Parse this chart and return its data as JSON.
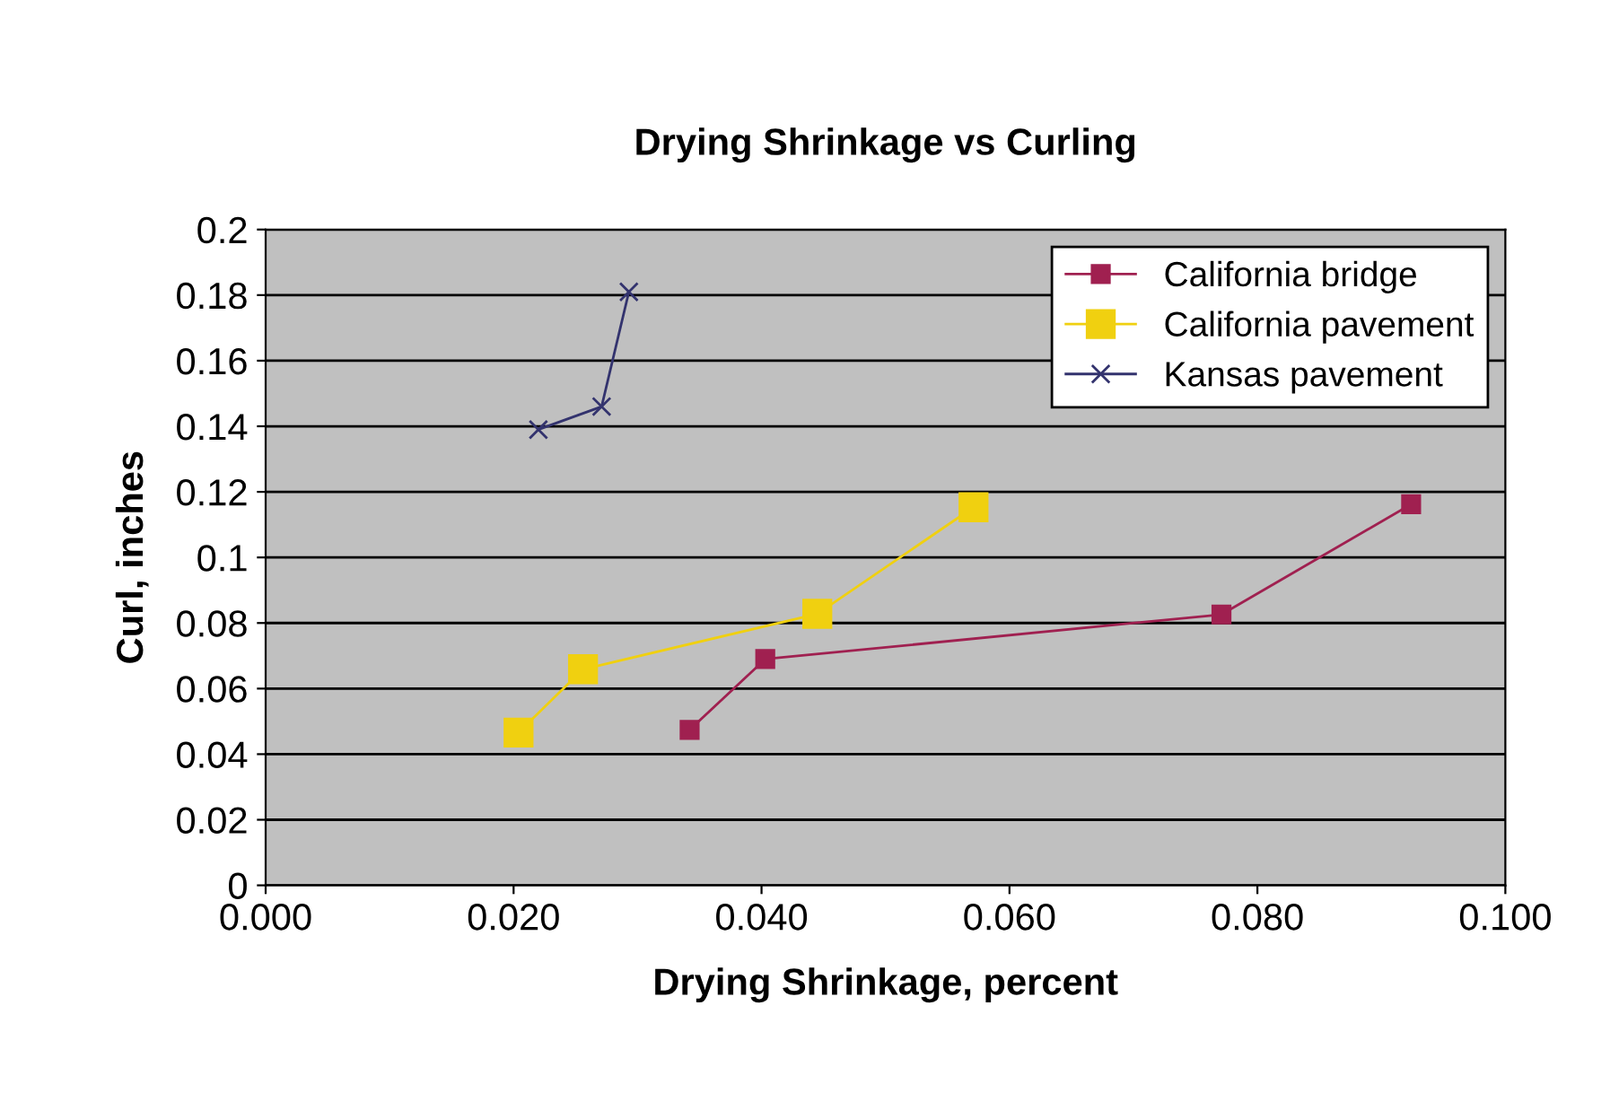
{
  "chart_data": {
    "type": "line",
    "title": "Drying Shrinkage vs Curling",
    "xlabel": "Drying Shrinkage, percent",
    "ylabel": "Curl, inches",
    "xlim": [
      0,
      0.1
    ],
    "xticks": [
      {
        "value": 0,
        "label": "0.000"
      },
      {
        "value": 0.02,
        "label": "0.020"
      },
      {
        "value": 0.04,
        "label": "0.040"
      },
      {
        "value": 0.06,
        "label": "0.060"
      },
      {
        "value": 0.08,
        "label": "0.080"
      },
      {
        "value": 0.1,
        "label": "0.100"
      }
    ],
    "ylim": [
      0,
      0.2
    ],
    "yticks": [
      0,
      0.02,
      0.04,
      0.06,
      0.08,
      0.1,
      0.12,
      0.14,
      0.16,
      0.18,
      0.2
    ],
    "grid": "y",
    "legend": "top right",
    "series": [
      {
        "name": "California bridge",
        "color": "#a02050",
        "marker": "square",
        "x": [
          0.0342,
          0.0403,
          0.0771,
          0.0924
        ],
        "values": [
          0.0474,
          0.069,
          0.0826,
          0.1162
        ]
      },
      {
        "name": "California pavement",
        "color": "#f0d010",
        "marker": "square",
        "x": [
          0.0204,
          0.0256,
          0.0445,
          0.0571
        ],
        "values": [
          0.0466,
          0.0659,
          0.0828,
          0.1153
        ]
      },
      {
        "name": "Kansas pavement",
        "color": "#33336e",
        "marker": "cross",
        "x": [
          0.022,
          0.0271,
          0.0293
        ],
        "values": [
          0.139,
          0.146,
          0.181
        ]
      }
    ]
  }
}
